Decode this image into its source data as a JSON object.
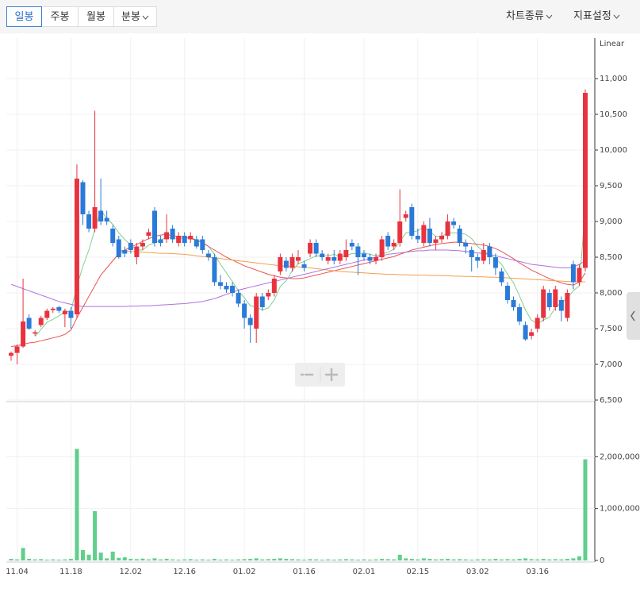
{
  "toolbar": {
    "tabs": [
      "일봉",
      "주봉",
      "월봉",
      "분봉"
    ],
    "menus": [
      "차트종류",
      "지표설정"
    ]
  },
  "chart_data": {
    "type": "candlestick",
    "scale_label": "Linear",
    "grid": true,
    "categories": [
      null,
      "11.04",
      null,
      null,
      null,
      null,
      null,
      null,
      null,
      null,
      "11.18",
      null,
      null,
      null,
      null,
      null,
      null,
      null,
      null,
      null,
      "12.02",
      null,
      null,
      null,
      null,
      null,
      null,
      null,
      null,
      "12.16",
      null,
      null,
      null,
      null,
      null,
      null,
      null,
      null,
      null,
      "01.02",
      null,
      null,
      null,
      null,
      null,
      null,
      null,
      null,
      null,
      "01.16",
      null,
      null,
      null,
      null,
      null,
      null,
      null,
      null,
      null,
      "02.01",
      null,
      null,
      null,
      null,
      null,
      null,
      null,
      null,
      "02.15",
      null,
      null,
      null,
      null,
      null,
      null,
      null,
      null,
      null,
      "03.02",
      null,
      null,
      null,
      null,
      null,
      null,
      null,
      null,
      null,
      "03.16",
      null,
      null,
      null,
      null,
      null,
      null,
      null,
      null
    ],
    "up_color": "#e8333f",
    "down_color": "#2a7ad8",
    "ohlc": [
      [
        7120,
        7180,
        7050,
        7160
      ],
      [
        7160,
        7280,
        7000,
        7250
      ],
      [
        7250,
        8200,
        7230,
        7600
      ],
      [
        7650,
        7700,
        7480,
        7500
      ],
      [
        7430,
        7480,
        7400,
        7450
      ],
      [
        7550,
        7680,
        7520,
        7650
      ],
      [
        7650,
        7780,
        7620,
        7750
      ],
      [
        7760,
        7800,
        7720,
        7780
      ],
      [
        7800,
        7820,
        7720,
        7750
      ],
      [
        7700,
        7780,
        7520,
        7750
      ],
      [
        7750,
        7800,
        7500,
        7650
      ],
      [
        7700,
        9800,
        7650,
        9600
      ],
      [
        9550,
        9580,
        8950,
        9100
      ],
      [
        9100,
        9150,
        8850,
        8900
      ],
      [
        8900,
        10550,
        8850,
        9200
      ],
      [
        9150,
        9600,
        8950,
        9000
      ],
      [
        9050,
        9150,
        8950,
        9000
      ],
      [
        8900,
        8950,
        8650,
        8700
      ],
      [
        8750,
        8800,
        8480,
        8500
      ],
      [
        8600,
        8650,
        8500,
        8550
      ],
      [
        8700,
        8750,
        8550,
        8600
      ],
      [
        8500,
        8700,
        8400,
        8650
      ],
      [
        8650,
        8750,
        8600,
        8700
      ],
      [
        8800,
        8900,
        8750,
        8850
      ],
      [
        9150,
        9200,
        8650,
        8700
      ],
      [
        8750,
        8800,
        8650,
        8700
      ],
      [
        8750,
        9100,
        8700,
        8850
      ],
      [
        8900,
        8950,
        8700,
        8750
      ],
      [
        8700,
        8850,
        8650,
        8800
      ],
      [
        8800,
        8850,
        8650,
        8700
      ],
      [
        8750,
        8850,
        8700,
        8800
      ],
      [
        8750,
        8800,
        8620,
        8650
      ],
      [
        8750,
        8800,
        8550,
        8600
      ],
      [
        8550,
        8600,
        8450,
        8500
      ],
      [
        8500,
        8550,
        8100,
        8150
      ],
      [
        8150,
        8250,
        8050,
        8100
      ],
      [
        8100,
        8150,
        8000,
        8050
      ],
      [
        8100,
        8150,
        7950,
        8000
      ],
      [
        8000,
        8050,
        7800,
        7850
      ],
      [
        7850,
        7900,
        7500,
        7650
      ],
      [
        7650,
        7700,
        7300,
        7550
      ],
      [
        7500,
        8000,
        7300,
        7950
      ],
      [
        7950,
        8000,
        7750,
        7800
      ],
      [
        7950,
        8050,
        7900,
        8000
      ],
      [
        8000,
        8250,
        7950,
        8200
      ],
      [
        8300,
        8550,
        8250,
        8500
      ],
      [
        8450,
        8500,
        8300,
        8350
      ],
      [
        8350,
        8550,
        8300,
        8500
      ],
      [
        8450,
        8600,
        8400,
        8500
      ],
      [
        8400,
        8450,
        8300,
        8350
      ],
      [
        8550,
        8750,
        8500,
        8700
      ],
      [
        8700,
        8750,
        8500,
        8550
      ],
      [
        8550,
        8600,
        8450,
        8500
      ],
      [
        8450,
        8550,
        8400,
        8500
      ],
      [
        8500,
        8600,
        8400,
        8450
      ],
      [
        8450,
        8600,
        8400,
        8550
      ],
      [
        8500,
        8750,
        8450,
        8600
      ],
      [
        8700,
        8750,
        8600,
        8650
      ],
      [
        8650,
        8700,
        8250,
        8500
      ],
      [
        8550,
        8600,
        8450,
        8500
      ],
      [
        8500,
        8550,
        8400,
        8450
      ],
      [
        8450,
        8550,
        8400,
        8500
      ],
      [
        8500,
        8800,
        8450,
        8750
      ],
      [
        8800,
        8850,
        8600,
        8650
      ],
      [
        8650,
        8750,
        8600,
        8700
      ],
      [
        8700,
        9450,
        8650,
        9000
      ],
      [
        9050,
        9150,
        9000,
        9100
      ],
      [
        9200,
        9250,
        8750,
        8800
      ],
      [
        8800,
        8900,
        8700,
        8750
      ],
      [
        8700,
        9000,
        8650,
        8950
      ],
      [
        8900,
        9050,
        8650,
        8700
      ],
      [
        8700,
        8800,
        8600,
        8750
      ],
      [
        8750,
        8850,
        8700,
        8800
      ],
      [
        8800,
        9100,
        8750,
        9000
      ],
      [
        9000,
        9050,
        8900,
        8950
      ],
      [
        8900,
        8950,
        8650,
        8700
      ],
      [
        8700,
        8750,
        8550,
        8650
      ],
      [
        8600,
        8650,
        8300,
        8500
      ],
      [
        8500,
        8550,
        8350,
        8450
      ],
      [
        8450,
        8700,
        8400,
        8600
      ],
      [
        8650,
        8700,
        8400,
        8500
      ],
      [
        8500,
        8550,
        8250,
        8350
      ],
      [
        8300,
        8350,
        8100,
        8150
      ],
      [
        8100,
        8150,
        7850,
        7900
      ],
      [
        7900,
        7950,
        7750,
        7800
      ],
      [
        7800,
        7850,
        7550,
        7600
      ],
      [
        7550,
        7600,
        7330,
        7350
      ],
      [
        7400,
        7500,
        7350,
        7450
      ],
      [
        7500,
        7700,
        7450,
        7650
      ],
      [
        7650,
        8100,
        7600,
        8050
      ],
      [
        8000,
        8050,
        7750,
        7800
      ],
      [
        7800,
        8100,
        7750,
        8050
      ],
      [
        7900,
        7950,
        7600,
        7750
      ],
      [
        7650,
        8050,
        7600,
        8000
      ],
      [
        8400,
        8450,
        8050,
        8150
      ],
      [
        8150,
        8400,
        8100,
        8350
      ],
      [
        8350,
        10850,
        8300,
        10800
      ]
    ],
    "ylim": [
      6500,
      11500
    ],
    "yticks": [
      {
        "value": 6500,
        "label": "6,500"
      },
      {
        "value": 7000,
        "label": "7,000"
      },
      {
        "value": 7500,
        "label": "7,500"
      },
      {
        "value": 8000,
        "label": "8,000"
      },
      {
        "value": 8500,
        "label": "8,500"
      },
      {
        "value": 9000,
        "label": "9,000"
      },
      {
        "value": 9500,
        "label": "9,500"
      },
      {
        "value": 10000,
        "label": "10,000"
      },
      {
        "value": 10500,
        "label": "10,500"
      },
      {
        "value": 11000,
        "label": "11,000"
      }
    ],
    "ma_lines": [
      {
        "color": "#7fd08f",
        "values": [
          null,
          null,
          null,
          null,
          7390,
          7490,
          7590,
          7630,
          7680,
          7740,
          7740,
          8100,
          8370,
          8600,
          8890,
          9160,
          9040,
          8960,
          8840,
          8750,
          8670,
          8600,
          8600,
          8670,
          8700,
          8740,
          8780,
          8770,
          8760,
          8760,
          8780,
          8740,
          8710,
          8650,
          8540,
          8400,
          8280,
          8160,
          8030,
          7930,
          7820,
          7800,
          7760,
          7790,
          7900,
          8090,
          8170,
          8310,
          8410,
          8440,
          8480,
          8520,
          8520,
          8520,
          8540,
          8510,
          8520,
          8550,
          8550,
          8560,
          8540,
          8520,
          8540,
          8570,
          8610,
          8720,
          8840,
          8850,
          8870,
          8920,
          8860,
          8790,
          8790,
          8840,
          8840,
          8840,
          8820,
          8760,
          8650,
          8580,
          8540,
          8480,
          8400,
          8260,
          8140,
          7960,
          7760,
          7620,
          7570,
          7620,
          7660,
          7800,
          7860,
          7930,
          8030,
          8100,
          9200
        ]
      },
      {
        "color": "#e8554f",
        "values": [
          7250,
          7260,
          7280,
          7300,
          7310,
          7330,
          7350,
          7370,
          7390,
          7420,
          7480,
          7650,
          7800,
          7950,
          8100,
          8250,
          8350,
          8450,
          8550,
          8600,
          8640,
          8680,
          8720,
          8760,
          8790,
          8810,
          8820,
          8800,
          8790,
          8780,
          8760,
          8740,
          8700,
          8650,
          8600,
          8550,
          8500,
          8460,
          8420,
          8380,
          8350,
          8320,
          8290,
          8260,
          8240,
          8220,
          8210,
          8200,
          8200,
          8210,
          8230,
          8250,
          8270,
          8290,
          8310,
          8330,
          8350,
          8370,
          8390,
          8410,
          8430,
          8450,
          8470,
          8490,
          8510,
          8540,
          8570,
          8600,
          8620,
          8640,
          8660,
          8680,
          8690,
          8700,
          8710,
          8710,
          8700,
          8690,
          8680,
          8670,
          8650,
          8620,
          8580,
          8530,
          8480,
          8420,
          8370,
          8320,
          8280,
          8240,
          8200,
          8170,
          8140,
          8120,
          8110,
          8150,
          8280
        ]
      },
      {
        "color": "#f0a050",
        "values": [
          null,
          null,
          null,
          null,
          null,
          null,
          null,
          null,
          null,
          null,
          null,
          null,
          null,
          null,
          null,
          null,
          null,
          null,
          8600,
          8590,
          8580,
          8575,
          8570,
          8565,
          8560,
          8555,
          8555,
          8550,
          8545,
          8540,
          8530,
          8520,
          8510,
          8500,
          8490,
          8480,
          8470,
          8460,
          8450,
          8440,
          8430,
          8420,
          8410,
          8400,
          8390,
          8380,
          8375,
          8370,
          8365,
          8360,
          8350,
          8340,
          8330,
          8320,
          8310,
          8300,
          8295,
          8290,
          8285,
          8280,
          8275,
          8270,
          8265,
          8260,
          8260,
          8255,
          8255,
          8250,
          8250,
          8250,
          8245,
          8245,
          8240,
          8240,
          8235,
          8235,
          8230,
          8230,
          8225,
          8225,
          8220,
          8220,
          8215,
          8210,
          8205,
          8200,
          8195,
          8190,
          8185,
          8180,
          8175,
          8170,
          8165,
          8160,
          8160,
          8155,
          8155
        ]
      },
      {
        "color": "#b070e0",
        "values": [
          8120,
          8090,
          8060,
          8030,
          8000,
          7970,
          7940,
          7910,
          7880,
          7860,
          7840,
          7820,
          7810,
          7810,
          7810,
          7810,
          7810,
          7810,
          7810,
          7810,
          7815,
          7815,
          7820,
          7820,
          7825,
          7830,
          7835,
          7840,
          7845,
          7850,
          7860,
          7870,
          7880,
          7900,
          7920,
          7950,
          7980,
          8010,
          8040,
          8060,
          8080,
          8100,
          8120,
          8140,
          8160,
          8180,
          8200,
          8220,
          8240,
          8260,
          8280,
          8300,
          8320,
          8340,
          8360,
          8380,
          8400,
          8420,
          8440,
          8460,
          8480,
          8500,
          8520,
          8540,
          8550,
          8560,
          8570,
          8580,
          8590,
          8590,
          8600,
          8600,
          8600,
          8600,
          8595,
          8590,
          8580,
          8570,
          8560,
          8550,
          8540,
          8520,
          8500,
          8480,
          8460,
          8440,
          8420,
          8400,
          8390,
          8380,
          8370,
          8360,
          8350,
          8350,
          8360,
          8400,
          8450
        ]
      }
    ],
    "volume": {
      "color": "#5fcf8a",
      "values": [
        30000,
        20000,
        240000,
        30000,
        20000,
        25000,
        15000,
        20000,
        15000,
        20000,
        30000,
        2150000,
        200000,
        110000,
        950000,
        150000,
        40000,
        170000,
        50000,
        60000,
        30000,
        25000,
        35000,
        20000,
        40000,
        20000,
        30000,
        20000,
        15000,
        20000,
        25000,
        15000,
        20000,
        15000,
        30000,
        15000,
        20000,
        15000,
        20000,
        25000,
        30000,
        40000,
        20000,
        25000,
        30000,
        40000,
        30000,
        25000,
        20000,
        15000,
        25000,
        20000,
        15000,
        20000,
        15000,
        20000,
        25000,
        20000,
        15000,
        20000,
        15000,
        20000,
        30000,
        25000,
        20000,
        110000,
        40000,
        30000,
        20000,
        40000,
        30000,
        20000,
        25000,
        30000,
        20000,
        25000,
        20000,
        15000,
        20000,
        25000,
        20000,
        30000,
        20000,
        25000,
        20000,
        30000,
        40000,
        25000,
        20000,
        30000,
        20000,
        25000,
        20000,
        30000,
        40000,
        80000,
        1950000
      ],
      "ylim": [
        0,
        3000000
      ],
      "yticks": [
        0,
        {
          "value": 1000000,
          "label": "1,000,000"
        },
        {
          "value": 2000000,
          "label": "2,000,000"
        }
      ]
    }
  }
}
